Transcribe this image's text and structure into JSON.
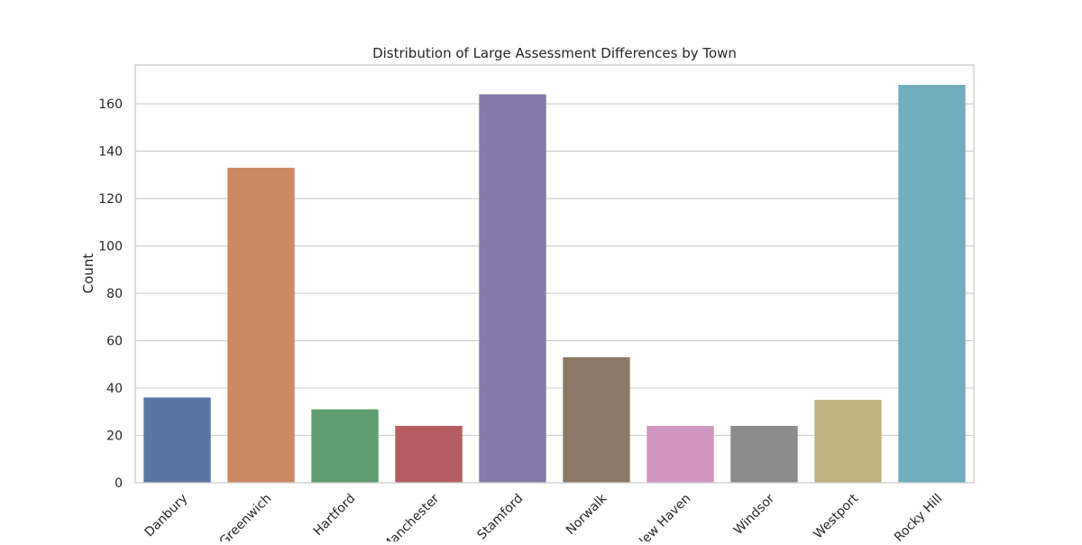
{
  "chart_data": {
    "type": "bar",
    "title": "Distribution of Large Assessment Differences by Town",
    "xlabel": "",
    "ylabel": "Count",
    "categories": [
      "Danbury",
      "Greenwich",
      "Hartford",
      "Manchester",
      "Stamford",
      "Norwalk",
      "New Haven",
      "Windsor",
      "Westport",
      "Rocky Hill"
    ],
    "values": [
      36,
      133,
      31,
      24,
      164,
      53,
      24,
      24,
      35,
      168
    ],
    "colors": [
      "#5875a4",
      "#cc8963",
      "#5f9e6e",
      "#b55d60",
      "#857aab",
      "#8d7866",
      "#d095bf",
      "#8c8c8c",
      "#c1b37f",
      "#71aec0"
    ],
    "ylim": [
      0,
      176.4
    ],
    "yticks": [
      0,
      20,
      40,
      60,
      80,
      100,
      120,
      140,
      160
    ],
    "grid": true,
    "legend": "none"
  }
}
